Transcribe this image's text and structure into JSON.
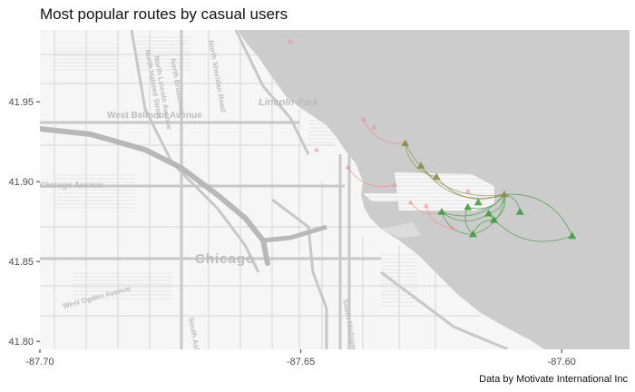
{
  "title": "Most popular routes by casual users",
  "caption": "Data by Motivate International Inc",
  "colors": {
    "lake": "#cccccc",
    "land": "#f6f6f6",
    "road": "#d4d4d4",
    "major_road": "#c6c6c6",
    "axis_text": "#4d4d4d",
    "green_route": "#3a9a3a",
    "olive_route": "#8a8a4a",
    "pink_route": "#f08a8a"
  },
  "map_labels": {
    "lincoln_park": "Lincoln Park",
    "west_belmont": "West Belmont Avenue",
    "chicago_ave": "Chicago Avenue",
    "chicago": "Chicago",
    "north_sheridan": "North Sheridan Road",
    "north_lincoln": "North Lincoln Avenue",
    "north_broadway": "North Broadway",
    "north_halsted": "North Halsted Street",
    "south_michigan": "South Michigan Avenue",
    "south_ashland": "South Ashland Avenue",
    "west_ogden": "West Ogden Avenue"
  },
  "chart_data": {
    "type": "map",
    "xlim": [
      -87.7,
      -87.587
    ],
    "ylim": [
      41.795,
      41.995
    ],
    "x_ticks": [
      -87.7,
      -87.65,
      -87.6
    ],
    "x_tick_labels": [
      "-87.70",
      "-87.65",
      "-87.60"
    ],
    "y_ticks": [
      41.8,
      41.85,
      41.9,
      41.95
    ],
    "y_tick_labels": [
      "41.80",
      "41.85",
      "41.90",
      "41.95"
    ],
    "hub": {
      "lon": -87.611,
      "lat": 41.892
    },
    "stations": [
      {
        "lon": -87.63,
        "lat": 41.924,
        "group": "olive"
      },
      {
        "lon": -87.627,
        "lat": 41.91,
        "group": "olive"
      },
      {
        "lon": -87.624,
        "lat": 41.903,
        "group": "olive"
      },
      {
        "lon": -87.611,
        "lat": 41.892,
        "group": "olive"
      },
      {
        "lon": -87.623,
        "lat": 41.881,
        "group": "green"
      },
      {
        "lon": -87.618,
        "lat": 41.884,
        "group": "green"
      },
      {
        "lon": -87.614,
        "lat": 41.88,
        "group": "green"
      },
      {
        "lon": -87.613,
        "lat": 41.876,
        "group": "green"
      },
      {
        "lon": -87.617,
        "lat": 41.867,
        "group": "green"
      },
      {
        "lon": -87.608,
        "lat": 41.881,
        "group": "green"
      },
      {
        "lon": -87.598,
        "lat": 41.866,
        "group": "green"
      },
      {
        "lon": -87.616,
        "lat": 41.887,
        "group": "green"
      },
      {
        "lon": -87.638,
        "lat": 41.939,
        "group": "pink"
      },
      {
        "lon": -87.636,
        "lat": 41.934,
        "group": "pink"
      },
      {
        "lon": -87.647,
        "lat": 41.92,
        "group": "pink"
      },
      {
        "lon": -87.641,
        "lat": 41.909,
        "group": "pink"
      },
      {
        "lon": -87.632,
        "lat": 41.898,
        "group": "pink"
      },
      {
        "lon": -87.629,
        "lat": 41.887,
        "group": "pink"
      },
      {
        "lon": -87.626,
        "lat": 41.885,
        "group": "pink"
      },
      {
        "lon": -87.621,
        "lat": 41.871,
        "group": "pink"
      },
      {
        "lon": -87.618,
        "lat": 41.894,
        "group": "pink"
      },
      {
        "lon": -87.652,
        "lat": 41.988,
        "group": "pink"
      }
    ],
    "routes": [
      {
        "from": [
          -87.63,
          41.924
        ],
        "to": [
          -87.611,
          41.892
        ],
        "group": "olive"
      },
      {
        "from": [
          -87.627,
          41.91
        ],
        "to": [
          -87.611,
          41.892
        ],
        "group": "olive"
      },
      {
        "from": [
          -87.624,
          41.903
        ],
        "to": [
          -87.611,
          41.892
        ],
        "group": "olive"
      },
      {
        "from": [
          -87.63,
          41.924
        ],
        "to": [
          -87.624,
          41.903
        ],
        "group": "olive"
      },
      {
        "from": [
          -87.623,
          41.881
        ],
        "to": [
          -87.611,
          41.892
        ],
        "group": "green"
      },
      {
        "from": [
          -87.618,
          41.884
        ],
        "to": [
          -87.611,
          41.892
        ],
        "group": "green"
      },
      {
        "from": [
          -87.614,
          41.88
        ],
        "to": [
          -87.611,
          41.892
        ],
        "group": "green"
      },
      {
        "from": [
          -87.613,
          41.876
        ],
        "to": [
          -87.611,
          41.892
        ],
        "group": "green"
      },
      {
        "from": [
          -87.617,
          41.867
        ],
        "to": [
          -87.611,
          41.892
        ],
        "group": "green"
      },
      {
        "from": [
          -87.608,
          41.881
        ],
        "to": [
          -87.611,
          41.892
        ],
        "group": "green"
      },
      {
        "from": [
          -87.598,
          41.866
        ],
        "to": [
          -87.611,
          41.892
        ],
        "group": "green"
      },
      {
        "from": [
          -87.623,
          41.881
        ],
        "to": [
          -87.617,
          41.867
        ],
        "group": "green"
      },
      {
        "from": [
          -87.618,
          41.884
        ],
        "to": [
          -87.617,
          41.867
        ],
        "group": "green"
      },
      {
        "from": [
          -87.623,
          41.881
        ],
        "to": [
          -87.614,
          41.88
        ],
        "group": "green"
      },
      {
        "from": [
          -87.613,
          41.876
        ],
        "to": [
          -87.617,
          41.867
        ],
        "group": "green"
      },
      {
        "from": [
          -87.614,
          41.88
        ],
        "to": [
          -87.598,
          41.866
        ],
        "group": "green"
      },
      {
        "from": [
          -87.638,
          41.939
        ],
        "to": [
          -87.63,
          41.924
        ],
        "group": "pink"
      },
      {
        "from": [
          -87.641,
          41.909
        ],
        "to": [
          -87.632,
          41.898
        ],
        "group": "pink"
      },
      {
        "from": [
          -87.629,
          41.887
        ],
        "to": [
          -87.623,
          41.881
        ],
        "group": "pink"
      },
      {
        "from": [
          -87.626,
          41.885
        ],
        "to": [
          -87.621,
          41.871
        ],
        "group": "pink"
      }
    ]
  }
}
